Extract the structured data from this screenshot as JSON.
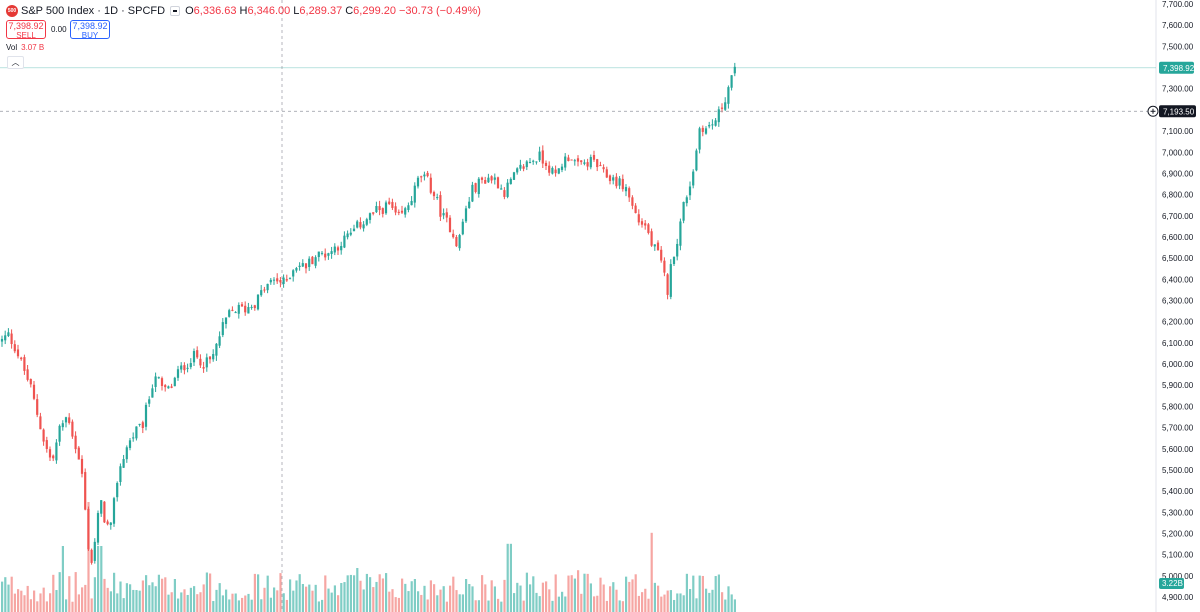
{
  "header": {
    "symbol_logo": "500",
    "symbol_title": "S&P 500 Index · 1D · SPCFD",
    "ohlc": [
      {
        "key": "O",
        "value": "6,336.63"
      },
      {
        "key": "H",
        "value": "6,346.00"
      },
      {
        "key": "L",
        "value": "6,289.37"
      },
      {
        "key": "C",
        "value": "6,299.20"
      }
    ],
    "change": "−30.73 (−0.49%)"
  },
  "trade": {
    "sell_price": "7,398.92",
    "sell_label": "SELL",
    "spread": "0.00",
    "buy_price": "7,398.92",
    "buy_label": "BUY"
  },
  "volume_indicator": {
    "label": "Vol",
    "value": "3.07 B"
  },
  "price_axis": {
    "ticks": [
      "7,700.00",
      "7,600.00",
      "7,500.00",
      "7,400.00",
      "7,300.00",
      "7,200.00",
      "7,100.00",
      "7,000.00",
      "6,900.00",
      "6,800.00",
      "6,700.00",
      "6,600.00",
      "6,500.00",
      "6,400.00",
      "6,300.00",
      "6,200.00",
      "6,100.00",
      "6,000.00",
      "5,900.00",
      "5,800.00",
      "5,700.00",
      "5,600.00",
      "5,500.00",
      "5,400.00",
      "5,300.00",
      "5,200.00",
      "5,100.00",
      "5,000.00",
      "4,900.00"
    ],
    "tick_values": [
      7700,
      7600,
      7500,
      7400,
      7300,
      7200,
      7100,
      7000,
      6900,
      6800,
      6700,
      6600,
      6500,
      6400,
      6300,
      6200,
      6100,
      6000,
      5900,
      5800,
      5700,
      5600,
      5500,
      5400,
      5300,
      5200,
      5100,
      5000,
      4900
    ],
    "last_price_label": "7,398.92",
    "last_price_value": 7398.92,
    "crosshair_price_label": "7,193.50",
    "crosshair_price_value": 7193.5,
    "volume_label": "3.22B"
  },
  "colors": {
    "up": "#26a69a",
    "down": "#ef5350",
    "up_volume": "#7fcdc5",
    "down_volume": "#f6a6a3",
    "last_price": "#26a69a",
    "crosshair": "#9598a1",
    "crosshair_tag": "#131722"
  },
  "chart_data": {
    "type": "candlestick",
    "title": "S&P 500 Index · 1D · SPCFD",
    "ylim": [
      4900,
      7700
    ],
    "path_points": [
      [
        0,
        6100
      ],
      [
        8,
        6140
      ],
      [
        15,
        6080
      ],
      [
        30,
        5900
      ],
      [
        45,
        5620
      ],
      [
        52,
        5530
      ],
      [
        60,
        5700
      ],
      [
        68,
        5760
      ],
      [
        75,
        5620
      ],
      [
        82,
        5480
      ],
      [
        88,
        5150
      ],
      [
        92,
        5060
      ],
      [
        96,
        5200
      ],
      [
        100,
        5360
      ],
      [
        104,
        5280
      ],
      [
        110,
        5200
      ],
      [
        118,
        5480
      ],
      [
        126,
        5600
      ],
      [
        135,
        5680
      ],
      [
        142,
        5700
      ],
      [
        148,
        5820
      ],
      [
        155,
        5960
      ],
      [
        162,
        5880
      ],
      [
        170,
        5880
      ],
      [
        178,
        5960
      ],
      [
        186,
        6000
      ],
      [
        195,
        6040
      ],
      [
        205,
        6000
      ],
      [
        212,
        6020
      ],
      [
        220,
        6140
      ],
      [
        228,
        6230
      ],
      [
        236,
        6260
      ],
      [
        245,
        6260
      ],
      [
        255,
        6290
      ],
      [
        265,
        6360
      ],
      [
        275,
        6400
      ],
      [
        285,
        6380
      ],
      [
        295,
        6470
      ],
      [
        305,
        6460
      ],
      [
        315,
        6510
      ],
      [
        330,
        6530
      ],
      [
        340,
        6570
      ],
      [
        350,
        6610
      ],
      [
        360,
        6660
      ],
      [
        370,
        6700
      ],
      [
        380,
        6730
      ],
      [
        390,
        6750
      ],
      [
        397,
        6680
      ],
      [
        405,
        6720
      ],
      [
        413,
        6800
      ],
      [
        420,
        6890
      ],
      [
        428,
        6860
      ],
      [
        436,
        6780
      ],
      [
        442,
        6700
      ],
      [
        450,
        6650
      ],
      [
        458,
        6560
      ],
      [
        464,
        6700
      ],
      [
        472,
        6820
      ],
      [
        480,
        6860
      ],
      [
        488,
        6880
      ],
      [
        496,
        6870
      ],
      [
        504,
        6810
      ],
      [
        512,
        6870
      ],
      [
        520,
        6920
      ],
      [
        530,
        6960
      ],
      [
        540,
        6980
      ],
      [
        548,
        6940
      ],
      [
        555,
        6880
      ],
      [
        562,
        6950
      ],
      [
        570,
        6990
      ],
      [
        578,
        6930
      ],
      [
        586,
        6950
      ],
      [
        594,
        6960
      ],
      [
        602,
        6900
      ],
      [
        610,
        6880
      ],
      [
        618,
        6860
      ],
      [
        626,
        6830
      ],
      [
        632,
        6750
      ],
      [
        638,
        6680
      ],
      [
        646,
        6650
      ],
      [
        652,
        6560
      ],
      [
        658,
        6520
      ],
      [
        664,
        6420
      ],
      [
        668,
        6340
      ],
      [
        672,
        6500
      ],
      [
        678,
        6600
      ],
      [
        684,
        6760
      ],
      [
        690,
        6850
      ],
      [
        695,
        6960
      ],
      [
        700,
        7130
      ],
      [
        706,
        7110
      ],
      [
        712,
        7130
      ],
      [
        718,
        7170
      ],
      [
        724,
        7240
      ],
      [
        730,
        7330
      ],
      [
        735,
        7380
      ]
    ],
    "volume": [
      {
        "x": 88,
        "value": 1.0
      },
      {
        "x": 62,
        "value": 0.6
      },
      {
        "x": 100,
        "value": 0.6
      },
      {
        "x": 209,
        "value": 0.35
      },
      {
        "x": 356,
        "value": 0.4
      },
      {
        "x": 509,
        "value": 0.62
      },
      {
        "x": 579,
        "value": 0.38
      },
      {
        "x": 652,
        "value": 0.72
      },
      {
        "x": 175,
        "value": 0.3
      },
      {
        "x": 465,
        "value": 0.3
      }
    ],
    "last_close": 7398.92
  },
  "crosshair": {
    "x_fraction": 0.3813
  }
}
